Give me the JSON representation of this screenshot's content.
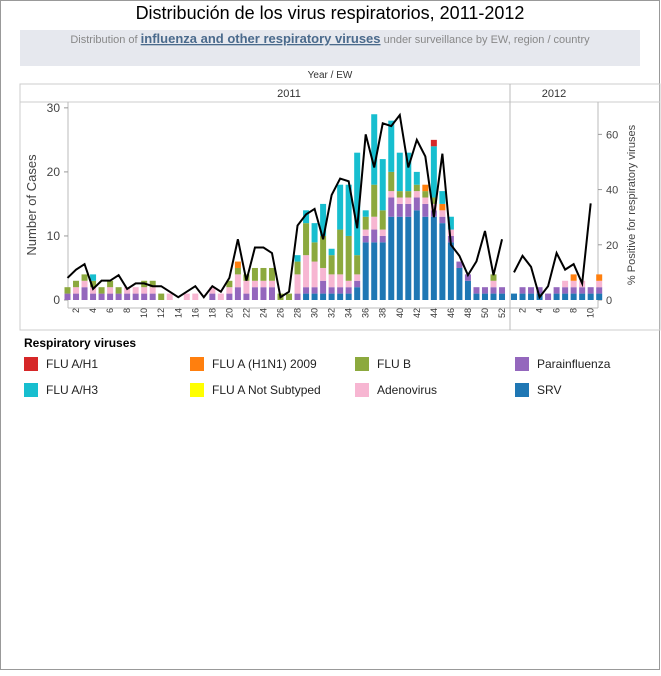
{
  "chart_data": {
    "type": "stacked_bar",
    "title": "Distribución de los virus respiratorios, 2011-2012",
    "subtitle": {
      "pre": "Distribution of ",
      "link": "influenza and other respiratory viruses",
      "post": " under surveillance by EW, region / country"
    },
    "x_label": "Year / EW",
    "y_label": "Number of Cases",
    "y2_label": "% Positive for respiratory viruses",
    "legend_title": "Respiratory viruses",
    "groups": [
      {
        "name": "2011",
        "categories": [
          null,
          "2",
          null,
          "4",
          null,
          "6",
          null,
          "8",
          null,
          "10",
          null,
          "12",
          null,
          "14",
          null,
          "16",
          null,
          "18",
          null,
          "20",
          null,
          "22",
          null,
          "24",
          null,
          "26",
          null,
          "28",
          null,
          "30",
          null,
          "32",
          null,
          "34",
          null,
          "36",
          null,
          "38",
          null,
          "40",
          null,
          "42",
          null,
          "44",
          null,
          "46",
          null,
          "48",
          null,
          "50",
          null,
          "52"
        ]
      },
      {
        "name": "2012",
        "categories": [
          null,
          "2",
          null,
          "4",
          null,
          "6",
          null,
          "8",
          null,
          "10",
          null
        ]
      }
    ],
    "ylim": [
      0,
      30.6
    ],
    "yticks": [
      0,
      10,
      20,
      30
    ],
    "y2lim": [
      0,
      71
    ],
    "y2ticks": [
      0,
      20,
      40,
      60
    ],
    "grid": false,
    "series": [
      {
        "name": "FLU A/H1",
        "color": "#d62728",
        "values": [
          0,
          0,
          0,
          0,
          0,
          0,
          0,
          0,
          0,
          0,
          0,
          0,
          0,
          0,
          0,
          0,
          0,
          0,
          0,
          0,
          0,
          0,
          0,
          0,
          0,
          0,
          0,
          0,
          0,
          0,
          0,
          0,
          0,
          0,
          0,
          0,
          0,
          0,
          0,
          0,
          0,
          0,
          0,
          1,
          0,
          0,
          0,
          0,
          0,
          0,
          0,
          0,
          0,
          0,
          0,
          0,
          0,
          0,
          0,
          0,
          0,
          0,
          0
        ]
      },
      {
        "name": "FLU A/H3",
        "color": "#17becf",
        "values": [
          0,
          0,
          0,
          1,
          0,
          0,
          0,
          0,
          0,
          0,
          0,
          0,
          0,
          0,
          0,
          0,
          0,
          0,
          0,
          0,
          0,
          0,
          0,
          0,
          0,
          0,
          0,
          1,
          2,
          3,
          5,
          1,
          7,
          8,
          16,
          1,
          11,
          8,
          8,
          6,
          6,
          2,
          0,
          8,
          2,
          2,
          0,
          0,
          0,
          0,
          0,
          0,
          0,
          0,
          0,
          0,
          0,
          0,
          0,
          0,
          0,
          0,
          0
        ]
      },
      {
        "name": "FLU A (H1N1) 2009",
        "color": "#ff7f0e",
        "values": [
          0,
          0,
          0,
          0,
          0,
          0,
          0,
          0,
          0,
          0,
          0,
          0,
          0,
          0,
          0,
          0,
          0,
          0,
          0,
          0,
          1,
          0,
          0,
          0,
          0,
          0,
          0,
          0,
          0,
          0,
          0,
          0,
          0,
          0,
          0,
          0,
          0,
          0,
          0,
          0,
          0,
          0,
          1,
          0,
          1,
          0,
          0,
          0,
          0,
          0,
          0,
          0,
          0,
          0,
          0,
          0,
          0,
          0,
          0,
          1,
          0,
          0,
          1
        ]
      },
      {
        "name": "FLU A Not Subtyped",
        "color": "#ffff00",
        "values": [
          0,
          0,
          0,
          0,
          0,
          0,
          0,
          0,
          0,
          0,
          0,
          0,
          0,
          0,
          0,
          0,
          0,
          0,
          0,
          0,
          0,
          0,
          0,
          0,
          0,
          0,
          0,
          0,
          0,
          0,
          0,
          0,
          0,
          0,
          0,
          0,
          0,
          0,
          0,
          0,
          0,
          0,
          0,
          0,
          0,
          0,
          0,
          0,
          0,
          0,
          0,
          0,
          0,
          0,
          0,
          0,
          0,
          0,
          0,
          0,
          0,
          0,
          0
        ]
      },
      {
        "name": "FLU B",
        "color": "#8ca93e",
        "values": [
          1,
          1,
          1,
          1,
          1,
          1,
          1,
          0,
          0,
          1,
          1,
          1,
          0,
          0,
          0,
          0,
          0,
          0,
          0,
          1,
          1,
          1,
          2,
          2,
          2,
          1,
          1,
          2,
          5,
          3,
          5,
          3,
          7,
          7,
          3,
          2,
          5,
          3,
          3,
          1,
          1,
          1,
          1,
          1,
          0,
          0,
          0,
          0,
          0,
          0,
          1,
          0,
          0,
          0,
          0,
          0,
          0,
          0,
          0,
          0,
          0,
          0,
          0
        ]
      },
      {
        "name": "Adenovirus",
        "color": "#f7b6d2",
        "values": [
          0,
          1,
          1,
          1,
          0,
          1,
          0,
          1,
          1,
          1,
          1,
          0,
          1,
          0,
          1,
          1,
          0,
          1,
          1,
          1,
          2,
          2,
          1,
          1,
          1,
          0,
          0,
          3,
          5,
          4,
          2,
          2,
          2,
          1,
          1,
          1,
          2,
          1,
          1,
          1,
          1,
          1,
          1,
          1,
          1,
          1,
          0,
          0,
          0,
          0,
          1,
          0,
          0,
          0,
          0,
          0,
          0,
          0,
          1,
          1,
          1,
          0,
          1
        ]
      },
      {
        "name": "Parainfluenza",
        "color": "#9467bd",
        "values": [
          1,
          1,
          2,
          1,
          1,
          1,
          1,
          1,
          1,
          1,
          1,
          0,
          0,
          0,
          0,
          0,
          0,
          1,
          0,
          1,
          2,
          1,
          2,
          2,
          2,
          0,
          0,
          1,
          1,
          1,
          2,
          1,
          1,
          1,
          1,
          1,
          2,
          1,
          3,
          2,
          2,
          2,
          2,
          1,
          1,
          1,
          1,
          1,
          1,
          1,
          1,
          1,
          0,
          1,
          1,
          1,
          1,
          1,
          1,
          1,
          1,
          1,
          1
        ]
      },
      {
        "name": "SRV",
        "color": "#1f77b4",
        "values": [
          0,
          0,
          0,
          0,
          0,
          0,
          0,
          0,
          0,
          0,
          0,
          0,
          0,
          0,
          0,
          0,
          0,
          0,
          0,
          0,
          0,
          0,
          0,
          0,
          0,
          0,
          0,
          0,
          1,
          1,
          1,
          1,
          1,
          1,
          2,
          9,
          9,
          9,
          13,
          13,
          13,
          14,
          13,
          13,
          12,
          9,
          5,
          3,
          1,
          1,
          1,
          1,
          1,
          1,
          1,
          1,
          0,
          1,
          1,
          1,
          1,
          1,
          1
        ]
      }
    ],
    "line_series": {
      "axis": "y2",
      "color": "#000000",
      "values": [
        8,
        11,
        13,
        4,
        7,
        7,
        9,
        4,
        6,
        6,
        5,
        5,
        3,
        1,
        3,
        5,
        1,
        5,
        3,
        8,
        22,
        7,
        19,
        19,
        17,
        1,
        3,
        27,
        31,
        33,
        22,
        38,
        44,
        43,
        26,
        60,
        48,
        64,
        63,
        67,
        48,
        58,
        52,
        30,
        53,
        20,
        16,
        9,
        14,
        25,
        9,
        22,
        10,
        16,
        12,
        1,
        5,
        17,
        11,
        13,
        6,
        35,
        null
      ]
    }
  }
}
